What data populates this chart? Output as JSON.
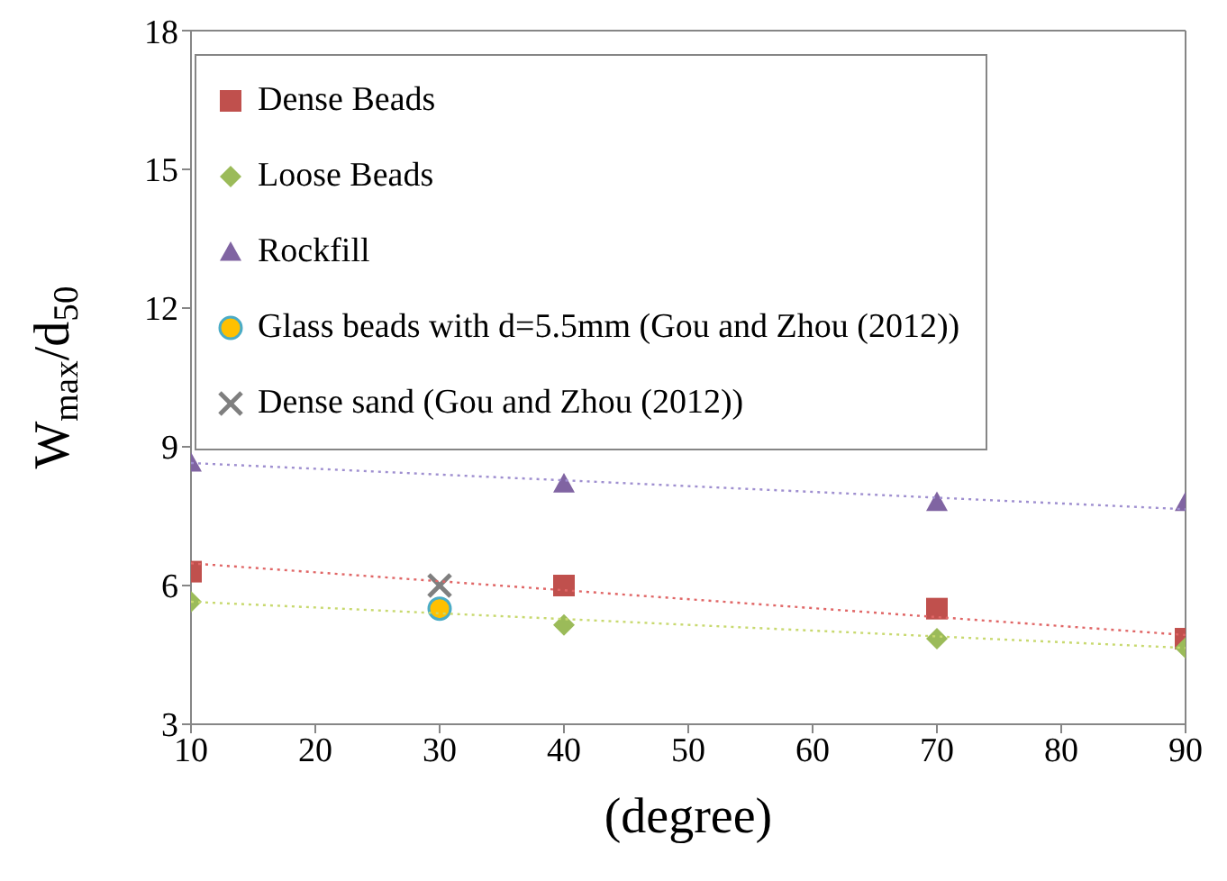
{
  "chart_data": {
    "type": "scatter",
    "xlabel": "(degree)",
    "ylabel": "W$_{max}$/d$_{50}$",
    "xlim": [
      10,
      90
    ],
    "xticks": [
      10,
      20,
      30,
      40,
      50,
      60,
      70,
      80,
      90
    ],
    "ylim": [
      3,
      18
    ],
    "yticks": [
      3,
      6,
      9,
      12,
      15,
      18
    ],
    "legend": "top left",
    "series": [
      {
        "name": "Dense Beads",
        "color": "#c0504d",
        "marker": "square",
        "x": [
          10,
          40,
          70,
          90
        ],
        "values": [
          6.3,
          6.0,
          5.5,
          4.85
        ]
      },
      {
        "name": "Loose Beads",
        "color": "#9bbb59",
        "marker": "diamond",
        "x": [
          10,
          40,
          70,
          90
        ],
        "values": [
          5.65,
          5.15,
          4.85,
          4.65
        ]
      },
      {
        "name": "Rockfill",
        "color": "#8064a2",
        "marker": "triangle",
        "x": [
          10,
          40,
          70,
          90
        ],
        "values": [
          8.65,
          8.2,
          7.8,
          7.8
        ]
      },
      {
        "name": "Glass beads with d=5.5mm (Gou and Zhou (2012))",
        "color": "#ffc000",
        "marker": "circle",
        "x": [
          30
        ],
        "values": [
          5.5
        ]
      },
      {
        "name": "Dense sand (Gou and Zhou (2012))",
        "color": "#7f7f7f",
        "marker": "cross",
        "x": [
          30
        ],
        "values": [
          6.0
        ]
      },
      {
        "type": "line",
        "color": "#e06666",
        "line_style": "dotted",
        "marker": "none",
        "x": [
          10,
          90
        ],
        "values": [
          6.48,
          4.93
        ]
      },
      {
        "type": "line",
        "color": "#c8d96f",
        "line_style": "dotted",
        "marker": "none",
        "x": [
          10,
          90
        ],
        "values": [
          5.65,
          4.65
        ]
      },
      {
        "type": "line",
        "color": "#9f8fd0",
        "line_style": "dotted",
        "marker": "none",
        "x": [
          10,
          90
        ],
        "values": [
          8.65,
          7.65
        ]
      }
    ]
  }
}
